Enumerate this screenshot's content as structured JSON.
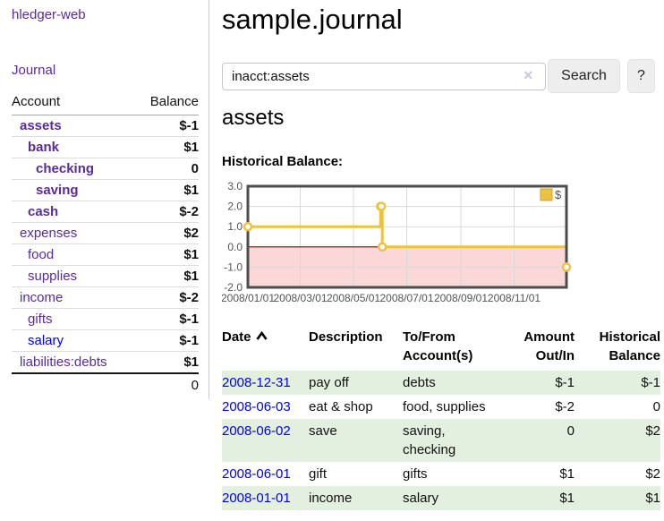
{
  "sidebar": {
    "brand": "hledger-web",
    "journal_link": "Journal",
    "accounts_header": {
      "account": "Account",
      "balance": "Balance"
    },
    "accounts": [
      {
        "name": "assets",
        "balance": "$-1",
        "level": 0,
        "bold": true,
        "balance_class": "neg-strong"
      },
      {
        "name": "bank",
        "balance": "$1",
        "level": 1,
        "bold": true,
        "balance_class": ""
      },
      {
        "name": "checking",
        "balance": "0",
        "level": 2,
        "bold": true,
        "balance_class": ""
      },
      {
        "name": "saving",
        "balance": "$1",
        "level": 2,
        "bold": true,
        "balance_class": ""
      },
      {
        "name": "cash",
        "balance": "$-2",
        "level": 1,
        "bold": true,
        "balance_class": "neg-strong"
      },
      {
        "name": "expenses",
        "balance": "$2",
        "level": 0,
        "bold": false,
        "balance_class": ""
      },
      {
        "name": "food",
        "balance": "$1",
        "level": 1,
        "bold": false,
        "balance_class": ""
      },
      {
        "name": "supplies",
        "balance": "$1",
        "level": 1,
        "bold": false,
        "balance_class": ""
      },
      {
        "name": "income",
        "balance": "$-2",
        "level": 0,
        "bold": false,
        "balance_class": "neg-soft"
      },
      {
        "name": "gifts",
        "balance": "$-1",
        "level": 1,
        "bold": false,
        "balance_class": "neg-soft"
      },
      {
        "name": "salary",
        "balance": "$-1",
        "level": 1,
        "bold": false,
        "balance_class": "neg-soft",
        "link_class": "blue"
      },
      {
        "name": "liabilities:debts",
        "balance": "$1",
        "level": 0,
        "bold": false,
        "balance_class": ""
      }
    ],
    "total": "0"
  },
  "header": {
    "title": "sample.journal"
  },
  "search": {
    "value": "inacct:assets",
    "clear_icon": "×",
    "button_label": "Search",
    "help_label": "?"
  },
  "register": {
    "heading": "assets",
    "chart_label": "Historical Balance:",
    "table": {
      "headers": {
        "date": "Date",
        "description": "Description",
        "tofrom_line1": "To/From",
        "tofrom_line2": "Account(s)",
        "amount_line1": "Amount",
        "amount_line2": "Out/In",
        "hist_line1": "Historical",
        "hist_line2": "Balance"
      },
      "rows": [
        {
          "date": "2008-12-31",
          "description": "pay off",
          "accounts": [
            "debts"
          ],
          "amount": "$-1",
          "amount_neg": true,
          "balance": "$-1",
          "balance_neg": true
        },
        {
          "date": "2008-06-03",
          "description": "eat & shop",
          "accounts": [
            "food, supplies"
          ],
          "amount": "$-2",
          "amount_neg": true,
          "balance": "0",
          "balance_neg": false
        },
        {
          "date": "2008-06-02",
          "description": "save",
          "accounts": [
            "saving,",
            "checking"
          ],
          "amount": "0",
          "amount_neg": false,
          "balance": "$2",
          "balance_neg": false
        },
        {
          "date": "2008-06-01",
          "description": "gift",
          "accounts": [
            "gifts"
          ],
          "amount": "$1",
          "amount_neg": false,
          "balance": "$2",
          "balance_neg": false
        },
        {
          "date": "2008-01-01",
          "description": "income",
          "accounts": [
            "salary"
          ],
          "amount": "$1",
          "amount_neg": false,
          "balance": "$1",
          "balance_neg": false
        }
      ]
    }
  },
  "chart_data": {
    "type": "line",
    "step": true,
    "title": "",
    "xlabel": "",
    "ylabel": "",
    "series": [
      {
        "name": "$",
        "color": "#edc240",
        "points": [
          [
            "2008-01-01",
            1
          ],
          [
            "2008-06-01",
            2
          ],
          [
            "2008-06-02",
            2
          ],
          [
            "2008-06-03",
            0
          ],
          [
            "2008-12-31",
            -1
          ]
        ]
      }
    ],
    "xlim": [
      "2008-01-01",
      "2008-12-31"
    ],
    "ylim": [
      -2,
      3
    ],
    "yticks": [
      {
        "label": "3.0",
        "value": 3
      },
      {
        "label": "2.0",
        "value": 2
      },
      {
        "label": "1.0",
        "value": 1
      },
      {
        "label": "0.0",
        "value": 0
      },
      {
        "label": "-1.0",
        "value": -1
      },
      {
        "label": "-2.0",
        "value": -2
      }
    ],
    "xticks": [
      {
        "label": "2008/01/01",
        "date": "2008-01-01"
      },
      {
        "label": "2008/03/01",
        "date": "2008-03-01"
      },
      {
        "label": "2008/05/01",
        "date": "2008-05-01"
      },
      {
        "label": "2008/07/01",
        "date": "2008-07-01"
      },
      {
        "label": "2008/09/01",
        "date": "2008-09-01"
      },
      {
        "label": "2008/11/01",
        "date": "2008-11-01"
      }
    ],
    "grid": true,
    "legend_position": "top-right",
    "negative_fill": "#fbd8d8",
    "zero_line_color": "#8b0000",
    "border_color": "#4d4d4d"
  }
}
